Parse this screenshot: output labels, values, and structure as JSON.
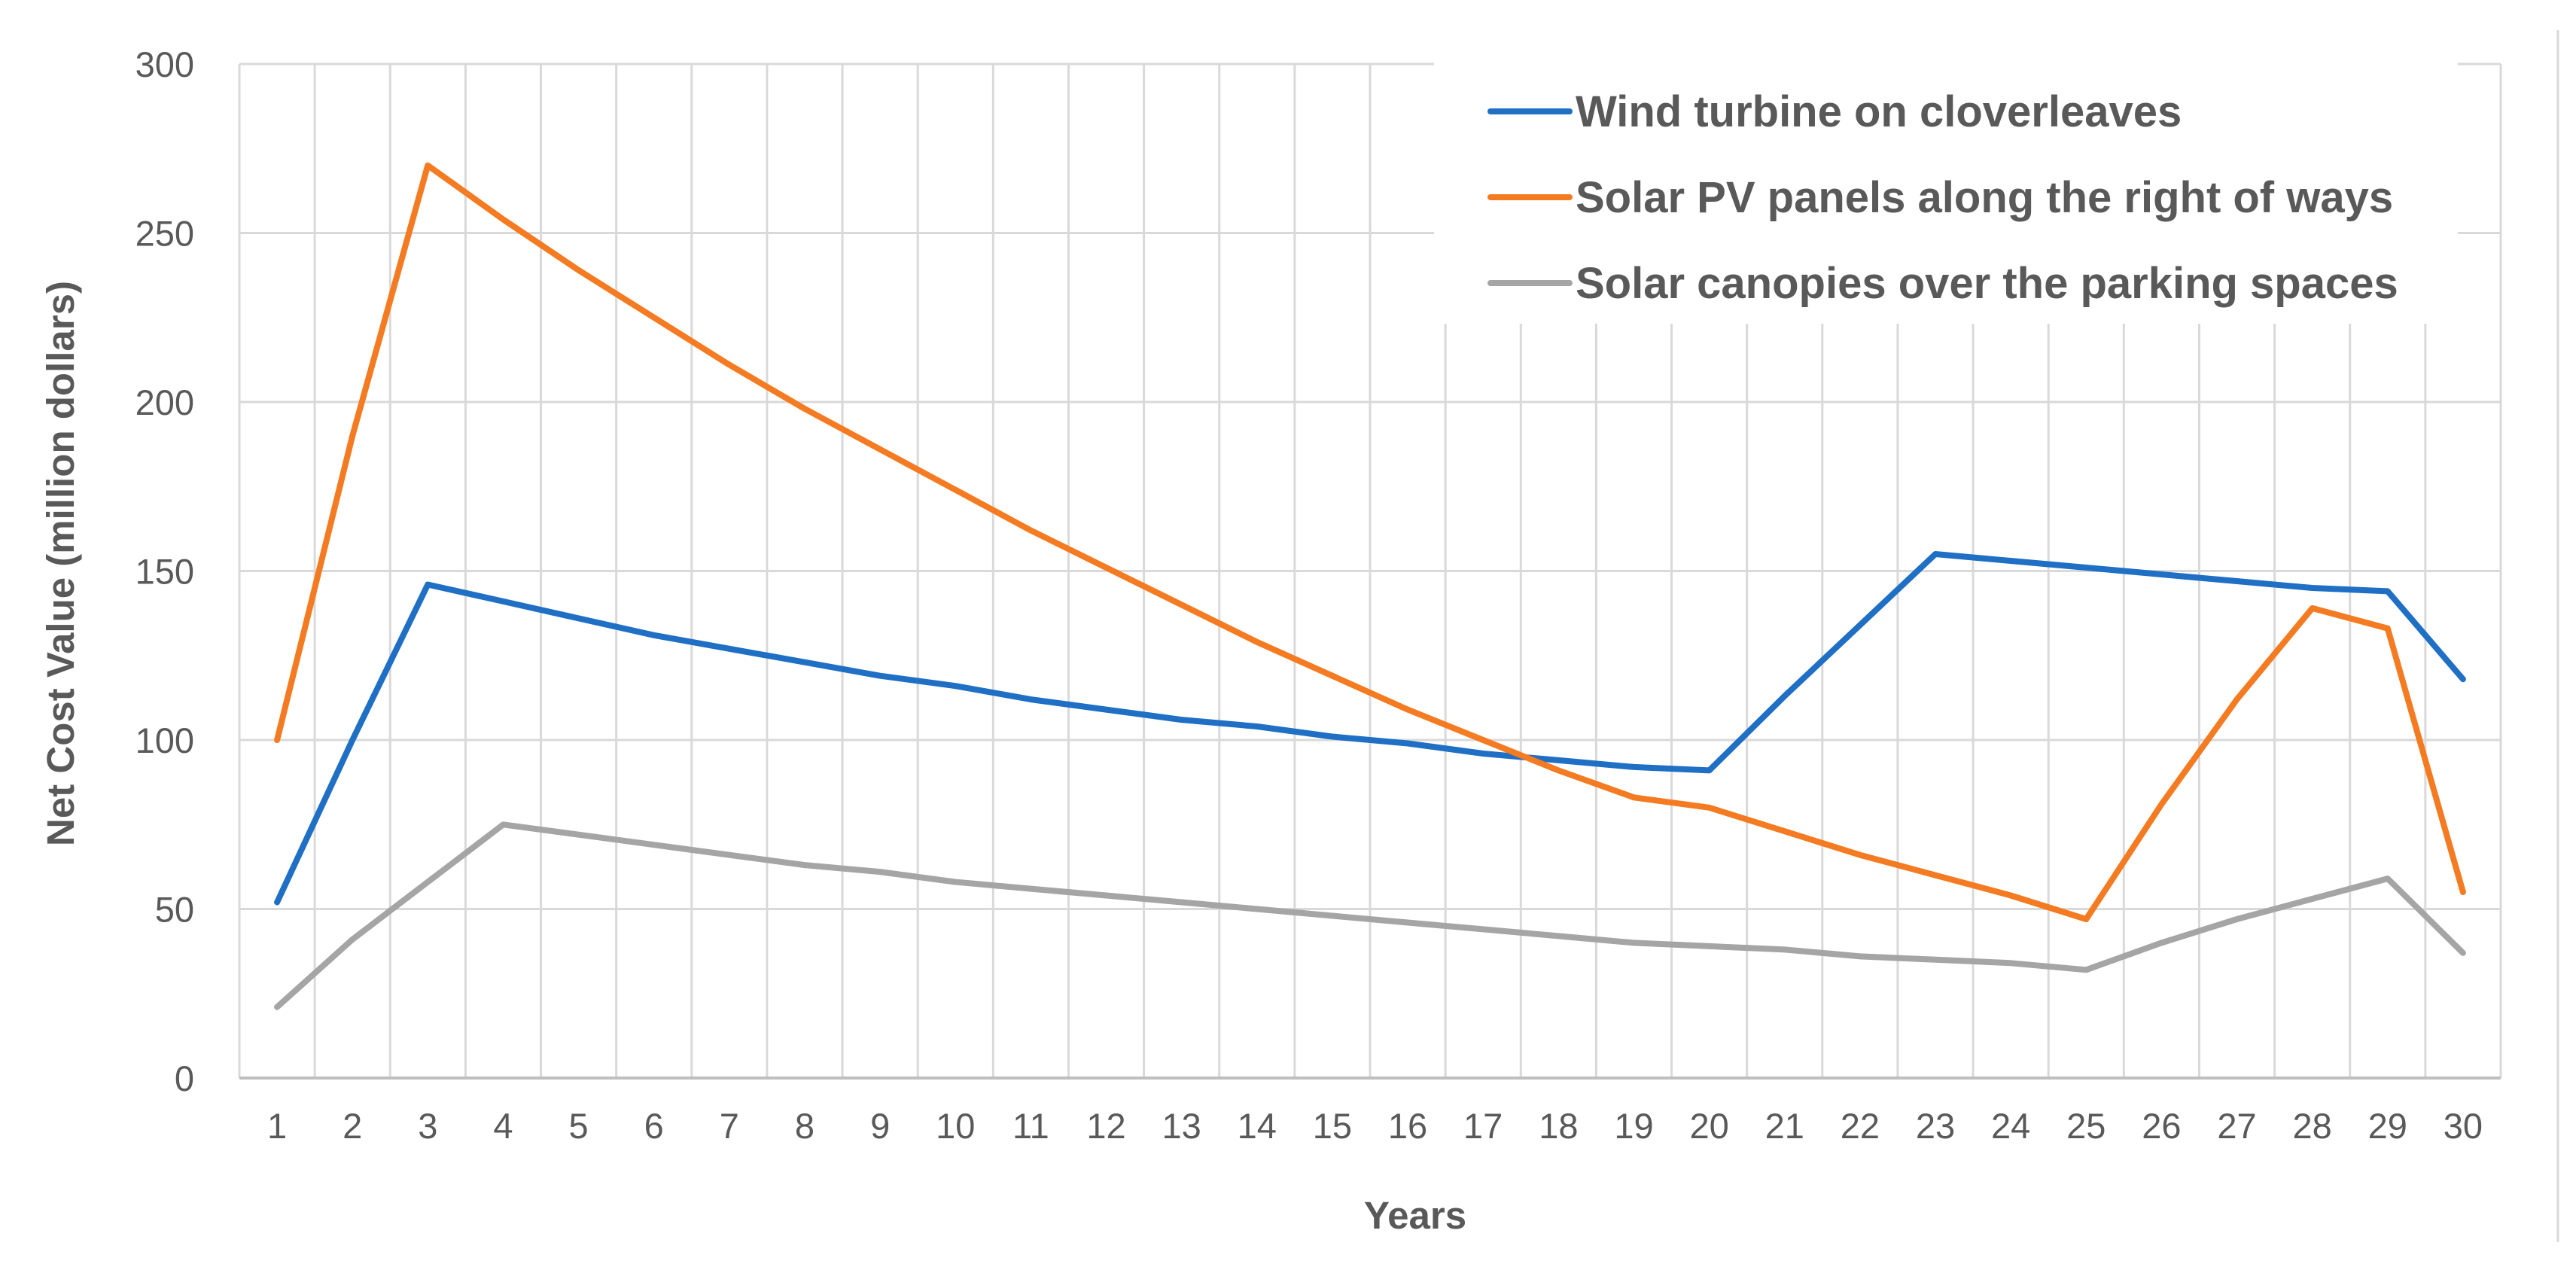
{
  "chart_data": {
    "type": "line",
    "title": "",
    "xlabel": "Years",
    "ylabel": "Net Cost Value (million dollars)",
    "ylim": [
      0,
      300
    ],
    "yticks": [
      "0",
      "50",
      "100",
      "150",
      "200",
      "250",
      "300"
    ],
    "categories": [
      "1",
      "2",
      "3",
      "4",
      "5",
      "6",
      "7",
      "8",
      "9",
      "10",
      "11",
      "12",
      "13",
      "14",
      "15",
      "16",
      "17",
      "18",
      "19",
      "20",
      "21",
      "22",
      "23",
      "24",
      "25",
      "26",
      "27",
      "28",
      "29",
      "30"
    ],
    "grid": true,
    "legend_position": "top-right",
    "series": [
      {
        "name": "Wind turbine on cloverleaves",
        "color": "#1F6FC5",
        "values": [
          52,
          100,
          146,
          141,
          136,
          131,
          127,
          123,
          119,
          116,
          112,
          109,
          106,
          104,
          101,
          99,
          96,
          94,
          92,
          91,
          113,
          134,
          155,
          153,
          151,
          149,
          147,
          145,
          144,
          118
        ]
      },
      {
        "name": "Solar PV panels along the right of ways",
        "color": "#F47B22",
        "values": [
          100,
          190,
          270,
          254,
          239,
          225,
          211,
          198,
          186,
          174,
          162,
          151,
          140,
          129,
          119,
          109,
          100,
          91,
          83,
          80,
          73,
          66,
          60,
          54,
          47,
          81,
          112,
          139,
          133,
          55
        ]
      },
      {
        "name": "Solar canopies over the parking spaces",
        "color": "#A5A5A5",
        "values": [
          21,
          41,
          58,
          75,
          72,
          69,
          66,
          63,
          61,
          58,
          56,
          54,
          52,
          50,
          48,
          46,
          44,
          42,
          40,
          39,
          38,
          36,
          35,
          34,
          32,
          40,
          47,
          53,
          59,
          37
        ]
      }
    ]
  }
}
